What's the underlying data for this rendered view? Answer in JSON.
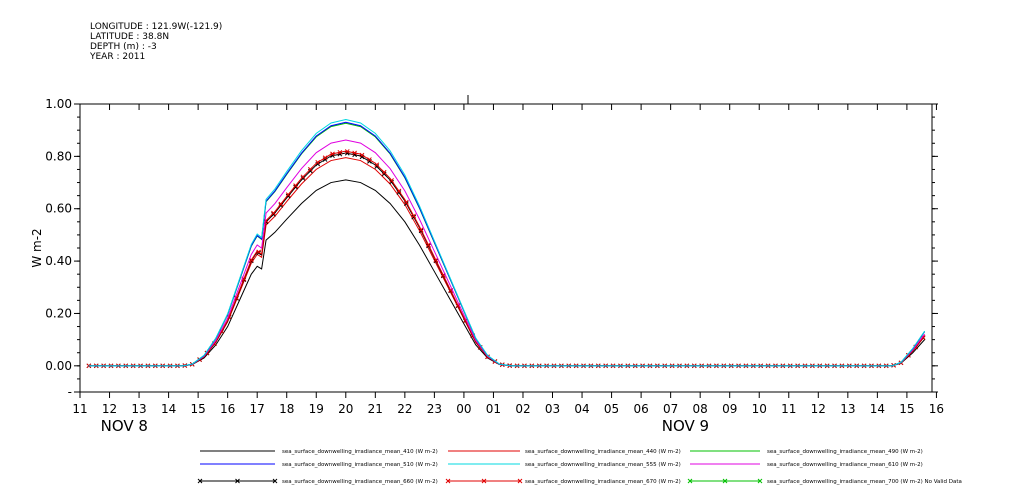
{
  "header": {
    "longitude": "LONGITUDE : 121.9W(-121.9)",
    "latitude": "LATITUDE : 38.8N",
    "depth": "DEPTH (m) : -3",
    "year": "YEAR : 2011"
  },
  "chart_data": {
    "type": "line",
    "ylabel": "W m-2",
    "ylim": [
      -0.1,
      1.0
    ],
    "yticks": [
      "-",
      "0.00",
      "0.20",
      "0.40",
      "0.60",
      "0.80",
      "1.00"
    ],
    "ytick_values": [
      -0.1,
      0.0,
      0.2,
      0.4,
      0.6,
      0.8,
      1.0
    ],
    "xlim": [
      11.0,
      39.85
    ],
    "x_hour_labels": [
      "11",
      "12",
      "13",
      "14",
      "15",
      "16",
      "17",
      "18",
      "19",
      "20",
      "21",
      "22",
      "23",
      "00",
      "01",
      "02",
      "03",
      "04",
      "05",
      "06",
      "07",
      "08",
      "09",
      "10",
      "11",
      "12",
      "13",
      "14",
      "15",
      "16"
    ],
    "date_labels": [
      {
        "text": "NOV 8",
        "x": 12.5
      },
      {
        "text": "NOV 9",
        "x": 31.5
      }
    ],
    "base_profile": {
      "x": [
        11.3,
        14.5,
        14.8,
        15.2,
        15.6,
        16.0,
        16.4,
        16.8,
        17.0,
        17.15,
        17.3,
        17.6,
        18.0,
        18.5,
        19.0,
        19.5,
        20.0,
        20.5,
        21.0,
        21.5,
        22.0,
        22.5,
        23.0,
        23.5,
        24.0,
        24.4,
        24.8,
        25.2,
        25.6,
        38.5,
        38.8,
        39.2,
        39.6
      ],
      "y": [
        0.0,
        0.0,
        0.005,
        0.03,
        0.08,
        0.15,
        0.25,
        0.35,
        0.38,
        0.37,
        0.48,
        0.51,
        0.56,
        0.62,
        0.67,
        0.7,
        0.71,
        0.7,
        0.67,
        0.62,
        0.55,
        0.46,
        0.36,
        0.26,
        0.16,
        0.08,
        0.03,
        0.005,
        0.0,
        0.0,
        0.01,
        0.05,
        0.1
      ]
    },
    "series": [
      {
        "name": "sea_surface_downwelling_irradiance_mean_410 (W m-2)",
        "color": "#000000",
        "scale": 1.0,
        "marker": "none"
      },
      {
        "name": "sea_surface_downwelling_irradiance_mean_440 (W m-2)",
        "color": "#e00000",
        "scale": 1.12,
        "marker": "none"
      },
      {
        "name": "sea_surface_downwelling_irradiance_mean_490 (W m-2)",
        "color": "#00c000",
        "scale": 1.305,
        "marker": "none"
      },
      {
        "name": "sea_surface_downwelling_irradiance_mean_510 (W m-2)",
        "color": "#0000ff",
        "scale": 1.31,
        "marker": "none"
      },
      {
        "name": "sea_surface_downwelling_irradiance_mean_555 (W m-2)",
        "color": "#00d8e0",
        "scale": 1.325,
        "marker": "none"
      },
      {
        "name": "sea_surface_downwelling_irradiance_mean_610 (W m-2)",
        "color": "#e000e0",
        "scale": 1.215,
        "marker": "none"
      },
      {
        "name": "sea_surface_downwelling_irradiance_mean_660 (W m-2)",
        "color": "#000000",
        "scale": 1.145,
        "marker": "x"
      },
      {
        "name": "sea_surface_downwelling_irradiance_mean_670 (W m-2)",
        "color": "#e00000",
        "scale": 1.155,
        "marker": "x"
      },
      {
        "name": "sea_surface_downwelling_irradiance_mean_700 (W m-2) No Valid Data",
        "color": "#00c000",
        "scale": 0,
        "marker": "x"
      }
    ]
  }
}
